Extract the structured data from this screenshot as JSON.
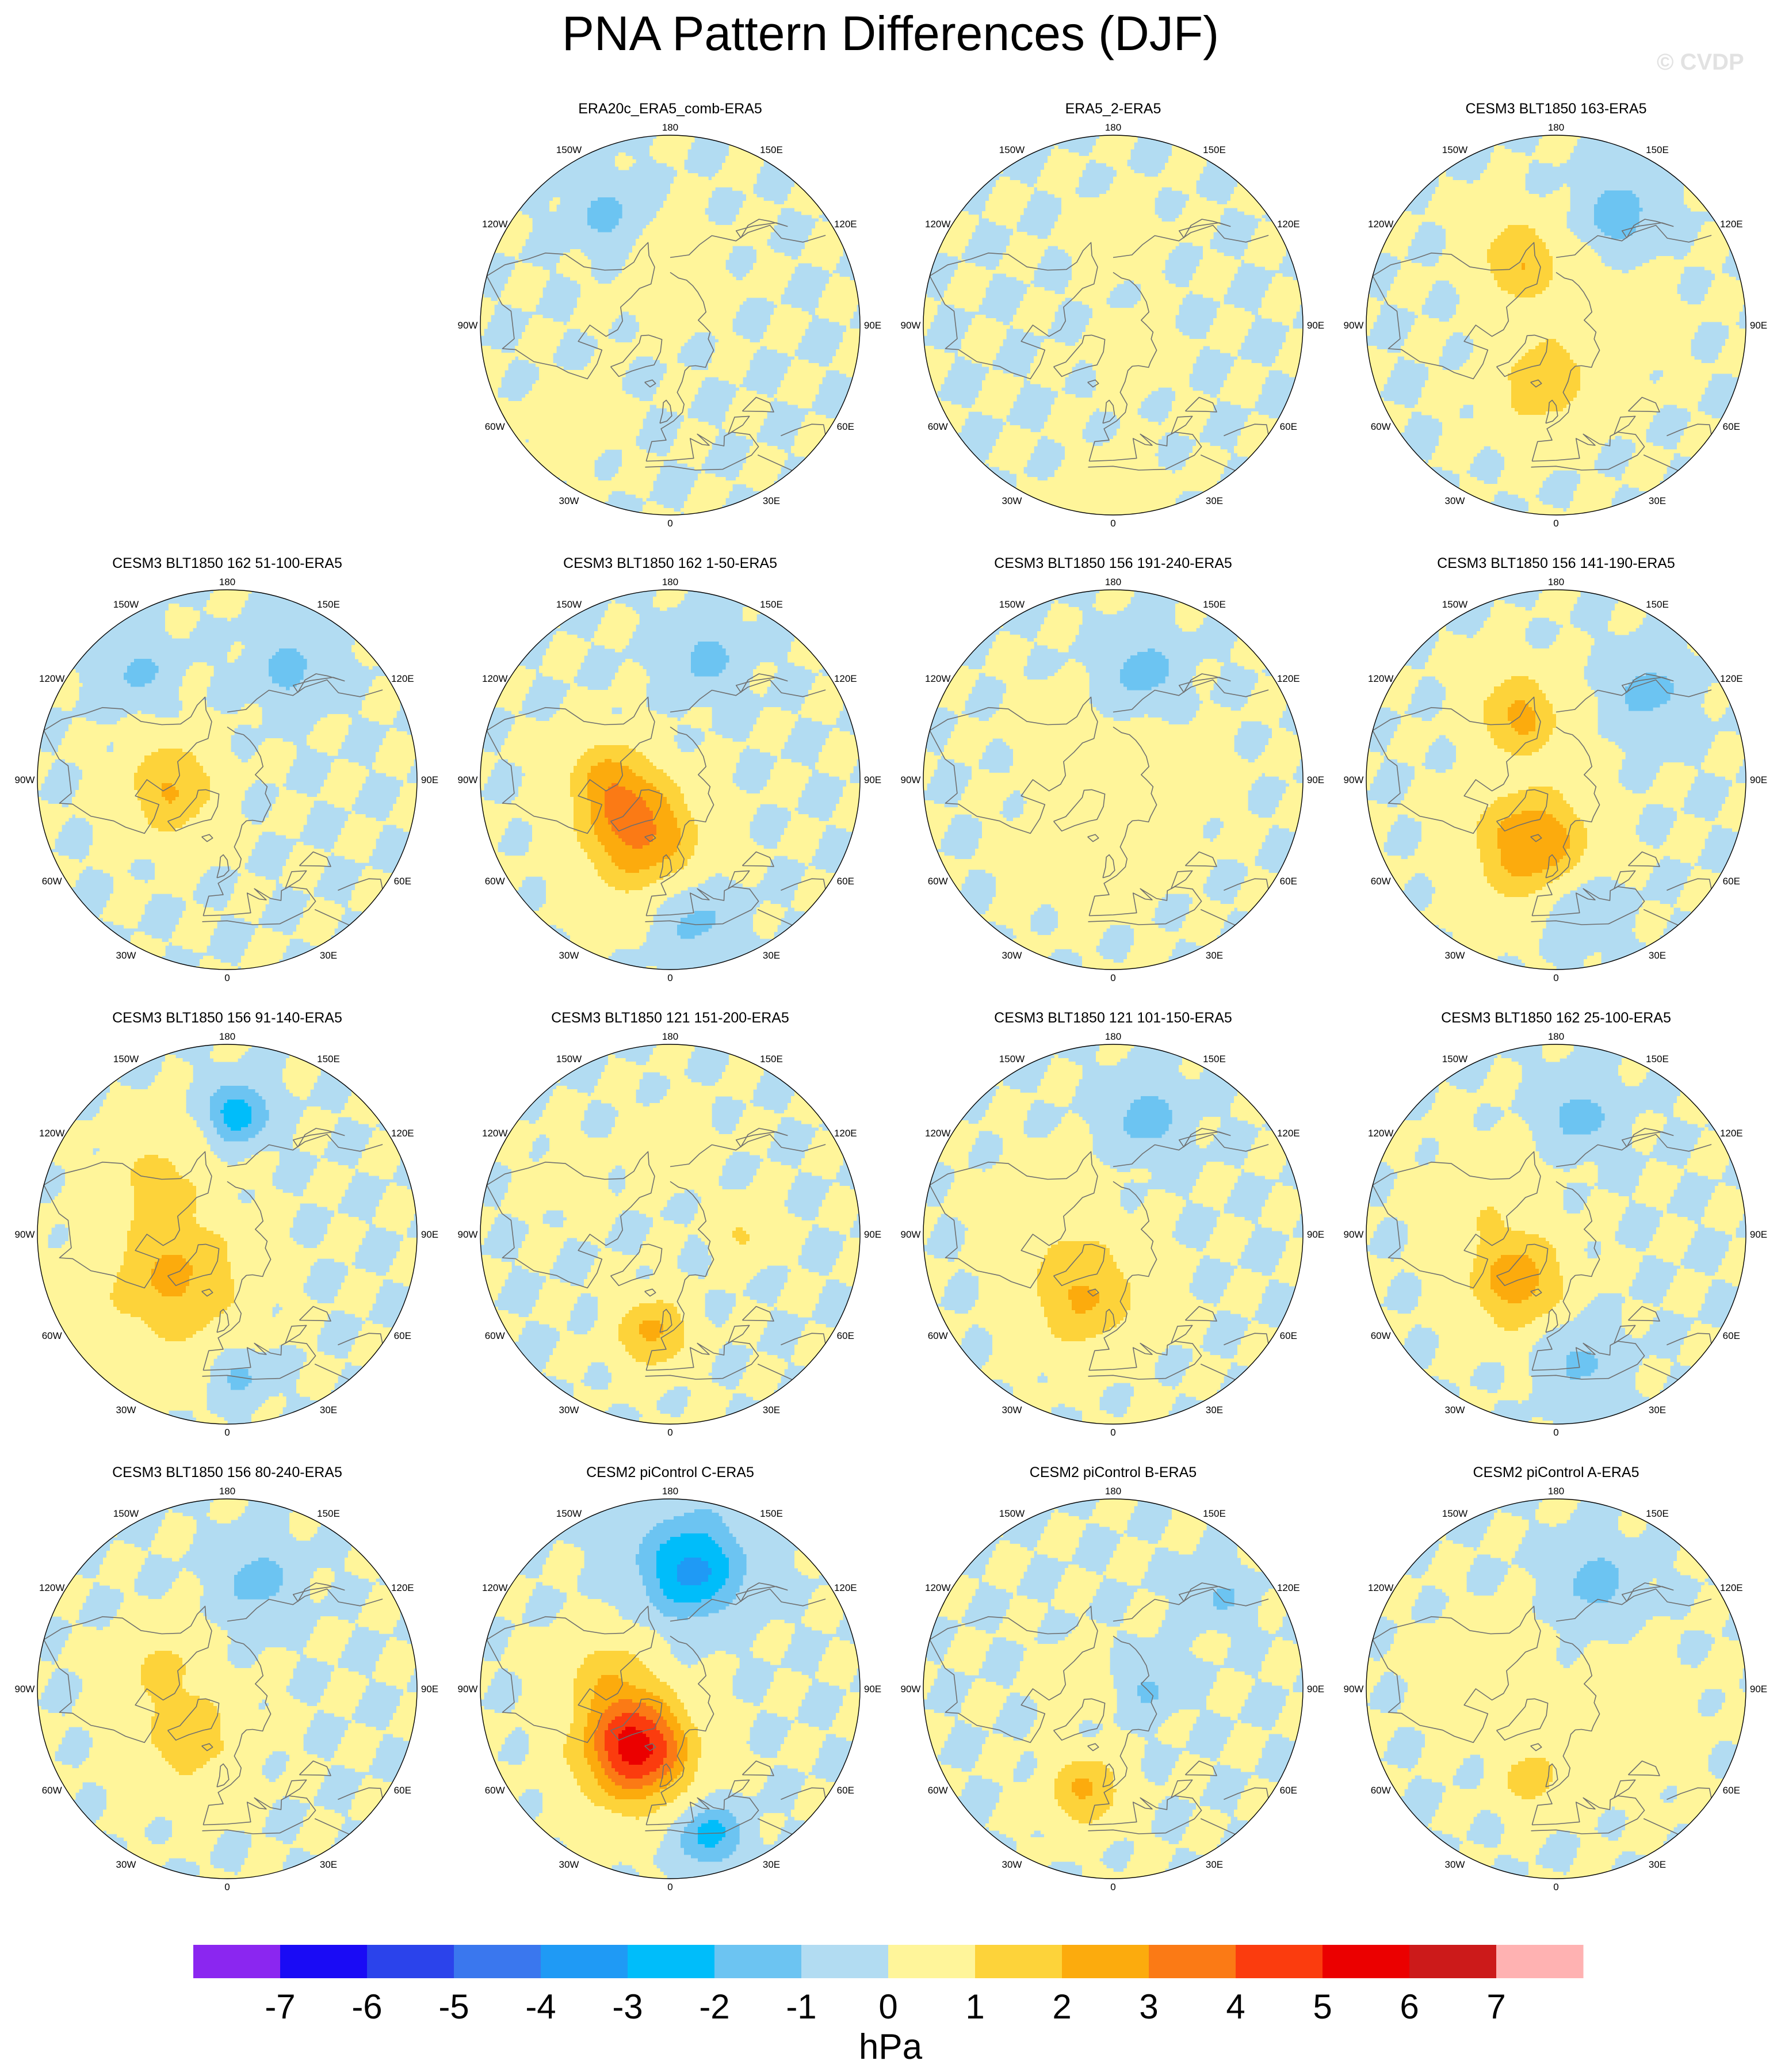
{
  "header": {
    "title": "PNA Pattern Differences (DJF)",
    "watermark": "© CVDP"
  },
  "map_labels": {
    "lon_180": "180",
    "lon_150w": "150W",
    "lon_150e": "150E",
    "lon_120w": "120W",
    "lon_120e": "120E",
    "lon_90w": "90W",
    "lon_90e": "90E",
    "lon_60w": "60W",
    "lon_60e": "60E",
    "lon_30w": "30W",
    "lon_30e": "30E",
    "lon_0": "0"
  },
  "colors": {
    "ocean_zero_band": "#b2dcf2",
    "coast": "#6f6f6f",
    "levels": [
      {
        "lo": -99,
        "hi": -7,
        "color": "#8b26f0"
      },
      {
        "lo": -7,
        "hi": -6,
        "color": "#1a0bf5"
      },
      {
        "lo": -6,
        "hi": -5,
        "color": "#2b43eb"
      },
      {
        "lo": -5,
        "hi": -4,
        "color": "#3a77ee"
      },
      {
        "lo": -4,
        "hi": -3,
        "color": "#1f9af5"
      },
      {
        "lo": -3,
        "hi": -2,
        "color": "#00bdfa"
      },
      {
        "lo": -2,
        "hi": -1,
        "color": "#6cc4f2"
      },
      {
        "lo": -1,
        "hi": 0,
        "color": "#b2dcf2"
      },
      {
        "lo": 0,
        "hi": 1,
        "color": "#fff59a"
      },
      {
        "lo": 1,
        "hi": 2,
        "color": "#fdd33a"
      },
      {
        "lo": 2,
        "hi": 3,
        "color": "#fcab0d"
      },
      {
        "lo": 3,
        "hi": 4,
        "color": "#fb7a15"
      },
      {
        "lo": 4,
        "hi": 5,
        "color": "#fb3c0e"
      },
      {
        "lo": 5,
        "hi": 6,
        "color": "#eb0000"
      },
      {
        "lo": 6,
        "hi": 7,
        "color": "#cc1a1a"
      },
      {
        "lo": 7,
        "hi": 99,
        "color": "#ffb2b2"
      }
    ]
  },
  "chart_data": {
    "type": "heatmap",
    "projection": "north-polar-stereographic",
    "field": "PNA pattern difference, DJF",
    "colorbar": {
      "ticks": [
        "-7",
        "-6",
        "-5",
        "-4",
        "-3",
        "-2",
        "-1",
        "0",
        "1",
        "2",
        "3",
        "4",
        "5",
        "6",
        "7"
      ],
      "unit": "hPa"
    },
    "panels": [
      {
        "title": "ERA20c_ERA5_comb-ERA5",
        "row": 0,
        "col": 1,
        "features": [
          {
            "lon": 180,
            "lat": 70,
            "amp": 0.5,
            "sigma": 14
          },
          {
            "lon": -45,
            "lat": 35,
            "amp": 0.5,
            "sigma": 9
          },
          {
            "lon": -150,
            "lat": 40,
            "amp": -1.3,
            "sigma": 8
          }
        ]
      },
      {
        "title": "ERA5_2-ERA5",
        "row": 0,
        "col": 2,
        "features": [
          {
            "lon": 175,
            "lat": 55,
            "amp": 0.5,
            "sigma": 10
          },
          {
            "lon": 30,
            "lat": 75,
            "amp": 0.5,
            "sigma": 10
          },
          {
            "lon": 0,
            "lat": 25,
            "amp": 0.5,
            "sigma": 10
          }
        ]
      },
      {
        "title": "CESM3 BLT1850 163-ERA5",
        "row": 0,
        "col": 3,
        "features": [
          {
            "lon": -150,
            "lat": 60,
            "amp": 2.0,
            "sigma": 11
          },
          {
            "lon": -15,
            "lat": 65,
            "amp": 1.6,
            "sigma": 13
          },
          {
            "lon": 150,
            "lat": 40,
            "amp": -1.6,
            "sigma": 9
          },
          {
            "lon": 90,
            "lat": 70,
            "amp": 0.8,
            "sigma": 15
          }
        ]
      },
      {
        "title": "CESM3 BLT1850 162 51-100-ERA5",
        "row": 1,
        "col": 0,
        "features": [
          {
            "lon": -75,
            "lat": 65,
            "amp": 1.6,
            "sigma": 12
          },
          {
            "lon": 150,
            "lat": 40,
            "amp": -1.3,
            "sigma": 9
          },
          {
            "lon": -140,
            "lat": 35,
            "amp": -1.2,
            "sigma": 8
          },
          {
            "lon": -100,
            "lat": 70,
            "amp": 0.7,
            "sigma": 12
          }
        ]
      },
      {
        "title": "CESM3 BLT1850 162 1-50-ERA5",
        "row": 1,
        "col": 1,
        "features": [
          {
            "lon": -30,
            "lat": 65,
            "amp": 3.3,
            "sigma": 15
          },
          {
            "lon": -90,
            "lat": 65,
            "amp": 2.0,
            "sigma": 11
          },
          {
            "lon": 165,
            "lat": 40,
            "amp": -1.3,
            "sigma": 9
          },
          {
            "lon": 10,
            "lat": 35,
            "amp": -1.3,
            "sigma": 9
          }
        ]
      },
      {
        "title": "CESM3 BLT1850 156 191-240-ERA5",
        "row": 1,
        "col": 2,
        "features": [
          {
            "lon": 165,
            "lat": 45,
            "amp": -1.5,
            "sigma": 9
          },
          {
            "lon": -20,
            "lat": 65,
            "amp": 0.8,
            "sigma": 16
          },
          {
            "lon": -130,
            "lat": 55,
            "amp": 1.1,
            "sigma": 8
          },
          {
            "lon": 90,
            "lat": 70,
            "amp": 0.6,
            "sigma": 15
          }
        ]
      },
      {
        "title": "CESM3 BLT1850 156 141-190-ERA5",
        "row": 1,
        "col": 3,
        "features": [
          {
            "lon": -20,
            "lat": 62,
            "amp": 3.0,
            "sigma": 15
          },
          {
            "lon": -150,
            "lat": 60,
            "amp": 2.3,
            "sigma": 11
          },
          {
            "lon": 135,
            "lat": 40,
            "amp": -1.4,
            "sigma": 9
          },
          {
            "lon": 10,
            "lat": 40,
            "amp": -1.2,
            "sigma": 9
          }
        ]
      },
      {
        "title": "CESM3 BLT1850 156 91-140-ERA5",
        "row": 2,
        "col": 0,
        "features": [
          {
            "lon": -50,
            "lat": 62,
            "amp": 2.2,
            "sigma": 18
          },
          {
            "lon": 175,
            "lat": 42,
            "amp": -2.8,
            "sigma": 7
          },
          {
            "lon": 5,
            "lat": 35,
            "amp": -1.3,
            "sigma": 6
          },
          {
            "lon": -130,
            "lat": 55,
            "amp": 1.2,
            "sigma": 12
          }
        ]
      },
      {
        "title": "CESM3 BLT1850 121 151-200-ERA5",
        "row": 2,
        "col": 1,
        "features": [
          {
            "lon": -10,
            "lat": 50,
            "amp": 2.3,
            "sigma": 9
          },
          {
            "lon": 90,
            "lat": 60,
            "amp": 1.2,
            "sigma": 7
          },
          {
            "lon": 180,
            "lat": 55,
            "amp": 0.6,
            "sigma": 10
          },
          {
            "lon": -120,
            "lat": 45,
            "amp": 0.6,
            "sigma": 8
          }
        ]
      },
      {
        "title": "CESM3 BLT1850 121 101-150-ERA5",
        "row": 2,
        "col": 2,
        "features": [
          {
            "lon": -25,
            "lat": 62,
            "amp": 2.2,
            "sigma": 14
          },
          {
            "lon": 165,
            "lat": 42,
            "amp": -1.5,
            "sigma": 9
          },
          {
            "lon": -110,
            "lat": 65,
            "amp": 0.8,
            "sigma": 14
          }
        ]
      },
      {
        "title": "CESM3 BLT1850 162 25-100-ERA5",
        "row": 2,
        "col": 3,
        "features": [
          {
            "lon": -40,
            "lat": 65,
            "amp": 2.6,
            "sigma": 13
          },
          {
            "lon": 170,
            "lat": 42,
            "amp": -1.4,
            "sigma": 9
          },
          {
            "lon": 10,
            "lat": 40,
            "amp": -1.3,
            "sigma": 9
          },
          {
            "lon": -120,
            "lat": 60,
            "amp": 0.8,
            "sigma": 14
          }
        ]
      },
      {
        "title": "CESM3 BLT1850 156 80-240-ERA5",
        "row": 3,
        "col": 0,
        "features": [
          {
            "lon": -40,
            "lat": 65,
            "amp": 1.5,
            "sigma": 15
          },
          {
            "lon": 165,
            "lat": 45,
            "amp": -1.5,
            "sigma": 9
          },
          {
            "lon": -110,
            "lat": 62,
            "amp": 1.1,
            "sigma": 10
          }
        ]
      },
      {
        "title": "CESM2 piControl C-ERA5",
        "row": 3,
        "col": 1,
        "features": [
          {
            "lon": -30,
            "lat": 62,
            "amp": 5.6,
            "sigma": 14
          },
          {
            "lon": 170,
            "lat": 42,
            "amp": -3.4,
            "sigma": 12
          },
          {
            "lon": 15,
            "lat": 32,
            "amp": -2.5,
            "sigma": 7
          },
          {
            "lon": -100,
            "lat": 65,
            "amp": 1.5,
            "sigma": 12
          }
        ]
      },
      {
        "title": "CESM2 piControl B-ERA5",
        "row": 3,
        "col": 2,
        "features": [
          {
            "lon": -15,
            "lat": 48,
            "amp": 2.2,
            "sigma": 9
          },
          {
            "lon": 90,
            "lat": 75,
            "amp": -1.2,
            "sigma": 7
          },
          {
            "lon": -110,
            "lat": 72,
            "amp": 1.1,
            "sigma": 7
          },
          {
            "lon": 130,
            "lat": 35,
            "amp": -1.1,
            "sigma": 6
          }
        ]
      },
      {
        "title": "CESM2 piControl A-ERA5",
        "row": 3,
        "col": 3,
        "features": [
          {
            "lon": -15,
            "lat": 52,
            "amp": 1.6,
            "sigma": 8
          },
          {
            "lon": 160,
            "lat": 45,
            "amp": -1.5,
            "sigma": 9
          },
          {
            "lon": 60,
            "lat": 60,
            "amp": 0.8,
            "sigma": 16
          },
          {
            "lon": -100,
            "lat": 60,
            "amp": 0.6,
            "sigma": 14
          }
        ]
      }
    ]
  }
}
